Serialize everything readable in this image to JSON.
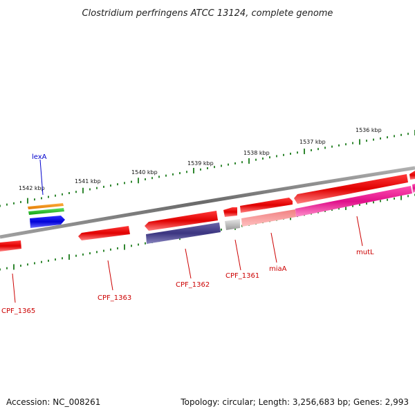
{
  "title": "Clostridium perfringens ATCC 13124, complete genome",
  "ticks": [
    {
      "label": "1542 kbp"
    },
    {
      "label": "1541 kbp"
    },
    {
      "label": "1540 kbp"
    },
    {
      "label": "1539 kbp"
    },
    {
      "label": "1538 kbp"
    },
    {
      "label": "1537 kbp"
    },
    {
      "label": "1536 kbp"
    }
  ],
  "genes": [
    {
      "name": "lexA",
      "color": "#0000cc"
    },
    {
      "name": "CPF_1365",
      "color": "#cc0000"
    },
    {
      "name": "CPF_1363",
      "color": "#cc0000"
    },
    {
      "name": "CPF_1362",
      "color": "#cc0000"
    },
    {
      "name": "CPF_1361",
      "color": "#cc0000"
    },
    {
      "name": "miaA",
      "color": "#cc0000"
    },
    {
      "name": "mutL",
      "color": "#cc0000"
    }
  ],
  "footer": {
    "accession": "Accession: NC_008261",
    "summary": "Topology: circular; Length: 3,256,683 bp; Genes: 2,993"
  }
}
